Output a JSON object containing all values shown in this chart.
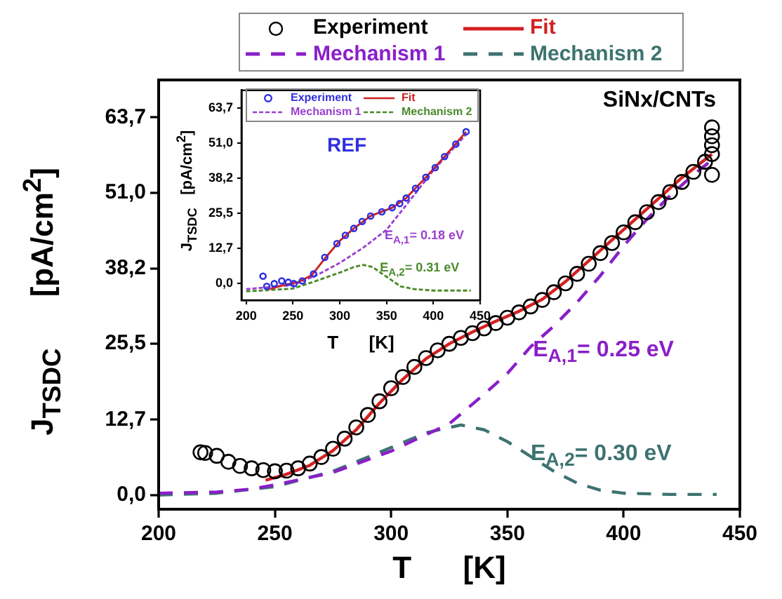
{
  "chart_data": [
    {
      "type": "line",
      "xlabel": "T      [K]",
      "ylabel": "J$_{TSDC}$      [pA/cm$^{2}$]",
      "xlim": [
        200,
        450
      ],
      "ylim": [
        -2.4,
        70
      ],
      "xticks": [
        200,
        250,
        300,
        350,
        400,
        450
      ],
      "yticks": [
        {
          "value": 0,
          "label": "0,0"
        },
        {
          "value": 12.7,
          "label": "12,7"
        },
        {
          "value": 25.5,
          "label": "25,5"
        },
        {
          "value": 38.2,
          "label": "38,2"
        },
        {
          "value": 51,
          "label": "51,0"
        },
        {
          "value": 63.7,
          "label": "63,7"
        }
      ],
      "grid": false,
      "legend": "top",
      "annotations": [
        "SiNx/CNTs",
        {
          "text": "E$_{A,1}$= 0.25 eV",
          "x": 361,
          "y": 24
        },
        {
          "text": "E$_{A,2}$= 0.30 eV",
          "x": 360,
          "y": 6.5
        }
      ],
      "series": [
        {
          "name": "Experiment",
          "type": "scatter",
          "marker": "circle",
          "color": "#000000",
          "x": [
            218,
            220,
            225,
            230,
            235,
            240,
            245,
            250,
            255,
            260,
            265,
            270,
            275,
            280,
            285,
            290,
            295,
            300,
            305,
            310,
            315,
            320,
            325,
            330,
            335,
            340,
            345,
            350,
            355,
            360,
            365,
            370,
            375,
            380,
            385,
            390,
            395,
            400,
            405,
            410,
            415,
            420,
            425,
            430,
            435,
            438,
            438,
            438,
            438,
            438
          ],
          "values": [
            7.2,
            7.1,
            6.6,
            5.6,
            4.9,
            4.5,
            4.2,
            4.0,
            4.1,
            4.5,
            5.3,
            6.4,
            7.8,
            9.5,
            11.4,
            13.5,
            15.8,
            18.0,
            19.9,
            21.6,
            23.1,
            24.4,
            25.5,
            26.5,
            27.3,
            28.1,
            29.0,
            29.9,
            30.8,
            31.8,
            32.9,
            34.2,
            35.7,
            37.3,
            39.0,
            40.8,
            42.5,
            44.3,
            46.0,
            47.7,
            49.4,
            51.1,
            52.8,
            54.5,
            56.2,
            54,
            57.5,
            59,
            60.5,
            62
          ]
        },
        {
          "name": "Fit",
          "type": "line",
          "marker": "none",
          "line_style": "solid",
          "color": "#d42020",
          "x": [
            246,
            255,
            265,
            275,
            285,
            295,
            305,
            315,
            325,
            335,
            345,
            355,
            365,
            375,
            385,
            395,
            405,
            415,
            425,
            438
          ],
          "values": [
            2.5,
            3.5,
            5,
            7.5,
            11,
            15.5,
            19.5,
            23,
            25.5,
            27.5,
            29.3,
            31,
            33,
            36,
            39.5,
            43,
            46.5,
            50,
            53.5,
            57.5
          ]
        },
        {
          "name": "Mechanism 1",
          "type": "line",
          "marker": "none",
          "line_style": "dashed",
          "color": "#8a1fc8",
          "x": [
            200,
            225,
            240,
            250,
            275,
            300,
            325,
            340,
            350,
            360,
            370,
            380,
            390,
            400,
            410,
            420,
            430,
            438
          ],
          "values": [
            0.3,
            0.5,
            1,
            1.7,
            3.8,
            7.4,
            12,
            17,
            20.5,
            25,
            28.5,
            32.5,
            37,
            42,
            46.5,
            50.5,
            54,
            56.5
          ]
        },
        {
          "name": "Mechanism 2",
          "type": "line",
          "marker": "none",
          "line_style": "dashed",
          "color": "#3d7370",
          "x": [
            200,
            225,
            250,
            275,
            300,
            315,
            330,
            340,
            350,
            360,
            370,
            380,
            390,
            400,
            420,
            440
          ],
          "values": [
            0,
            0.3,
            1.4,
            4,
            8,
            10.5,
            11.8,
            11,
            9,
            6.5,
            4,
            2,
            0.8,
            0.3,
            0.1,
            0.1
          ]
        }
      ]
    },
    {
      "type": "line",
      "xlabel": "T      [K]",
      "ylabel": "J$_{TSDC}$   [pA/cm$^{2}$]",
      "xlim": [
        195,
        450
      ],
      "ylim": [
        -6,
        70
      ],
      "xticks": [
        200,
        250,
        300,
        350,
        400,
        450
      ],
      "yticks": [
        {
          "value": 0,
          "label": "0,0"
        },
        {
          "value": 12.7,
          "label": "12,7"
        },
        {
          "value": 25.5,
          "label": "25,5"
        },
        {
          "value": 38.2,
          "label": "38,2"
        },
        {
          "value": 51,
          "label": "51,0"
        },
        {
          "value": 63.7,
          "label": "63,7"
        }
      ],
      "grid": false,
      "legend": "top",
      "annotations": [
        "REF",
        {
          "text": "E$_{A,1}$= 0.18 eV",
          "x": 348,
          "y": 17
        },
        {
          "text": "E$_{A,2}$= 0.31 eV",
          "x": 343,
          "y": 5
        }
      ],
      "series": [
        {
          "name": "Experiment",
          "type": "scatter",
          "marker": "circle",
          "color": "#3030e0",
          "x": [
            218,
            222,
            230,
            238,
            245,
            251,
            260,
            272,
            284,
            297,
            306,
            315,
            324,
            333,
            345,
            356,
            364,
            371,
            381,
            392,
            402,
            412,
            424,
            435
          ],
          "values": [
            2.7,
            -1,
            0,
            1,
            0.5,
            0,
            1,
            3.5,
            9.5,
            14.5,
            17.5,
            20,
            22.5,
            24.5,
            26,
            27.5,
            29,
            31,
            34.5,
            38.5,
            42,
            46,
            50.5,
            55
          ]
        },
        {
          "name": "Fit",
          "type": "line",
          "marker": "none",
          "line_style": "solid",
          "color": "#cc2020",
          "x": [
            225,
            240,
            255,
            270,
            285,
            300,
            315,
            333,
            356,
            371,
            392,
            412,
            435
          ],
          "values": [
            -2,
            -0.5,
            0.5,
            3,
            9.5,
            15.5,
            20,
            24.5,
            27.5,
            31,
            38.5,
            46,
            55
          ]
        },
        {
          "name": "Mechanism 1",
          "type": "line",
          "marker": "none",
          "line_style": "dashed",
          "color": "#9a3fd0",
          "x": [
            200,
            250,
            275,
            300,
            325,
            350,
            370,
            400,
            435
          ],
          "values": [
            -2,
            -0.5,
            3,
            7.5,
            13,
            19.5,
            28,
            41,
            54
          ]
        },
        {
          "name": "Mechanism 2",
          "type": "line",
          "marker": "none",
          "line_style": "dashed",
          "color": "#4a8a2a",
          "x": [
            200,
            250,
            275,
            300,
            315,
            325,
            335,
            350,
            365,
            380,
            400,
            440
          ],
          "values": [
            -2.8,
            -1.8,
            1,
            4,
            6,
            6.8,
            6,
            2.5,
            -1,
            -2,
            -2.5,
            -2.5
          ]
        }
      ]
    }
  ]
}
